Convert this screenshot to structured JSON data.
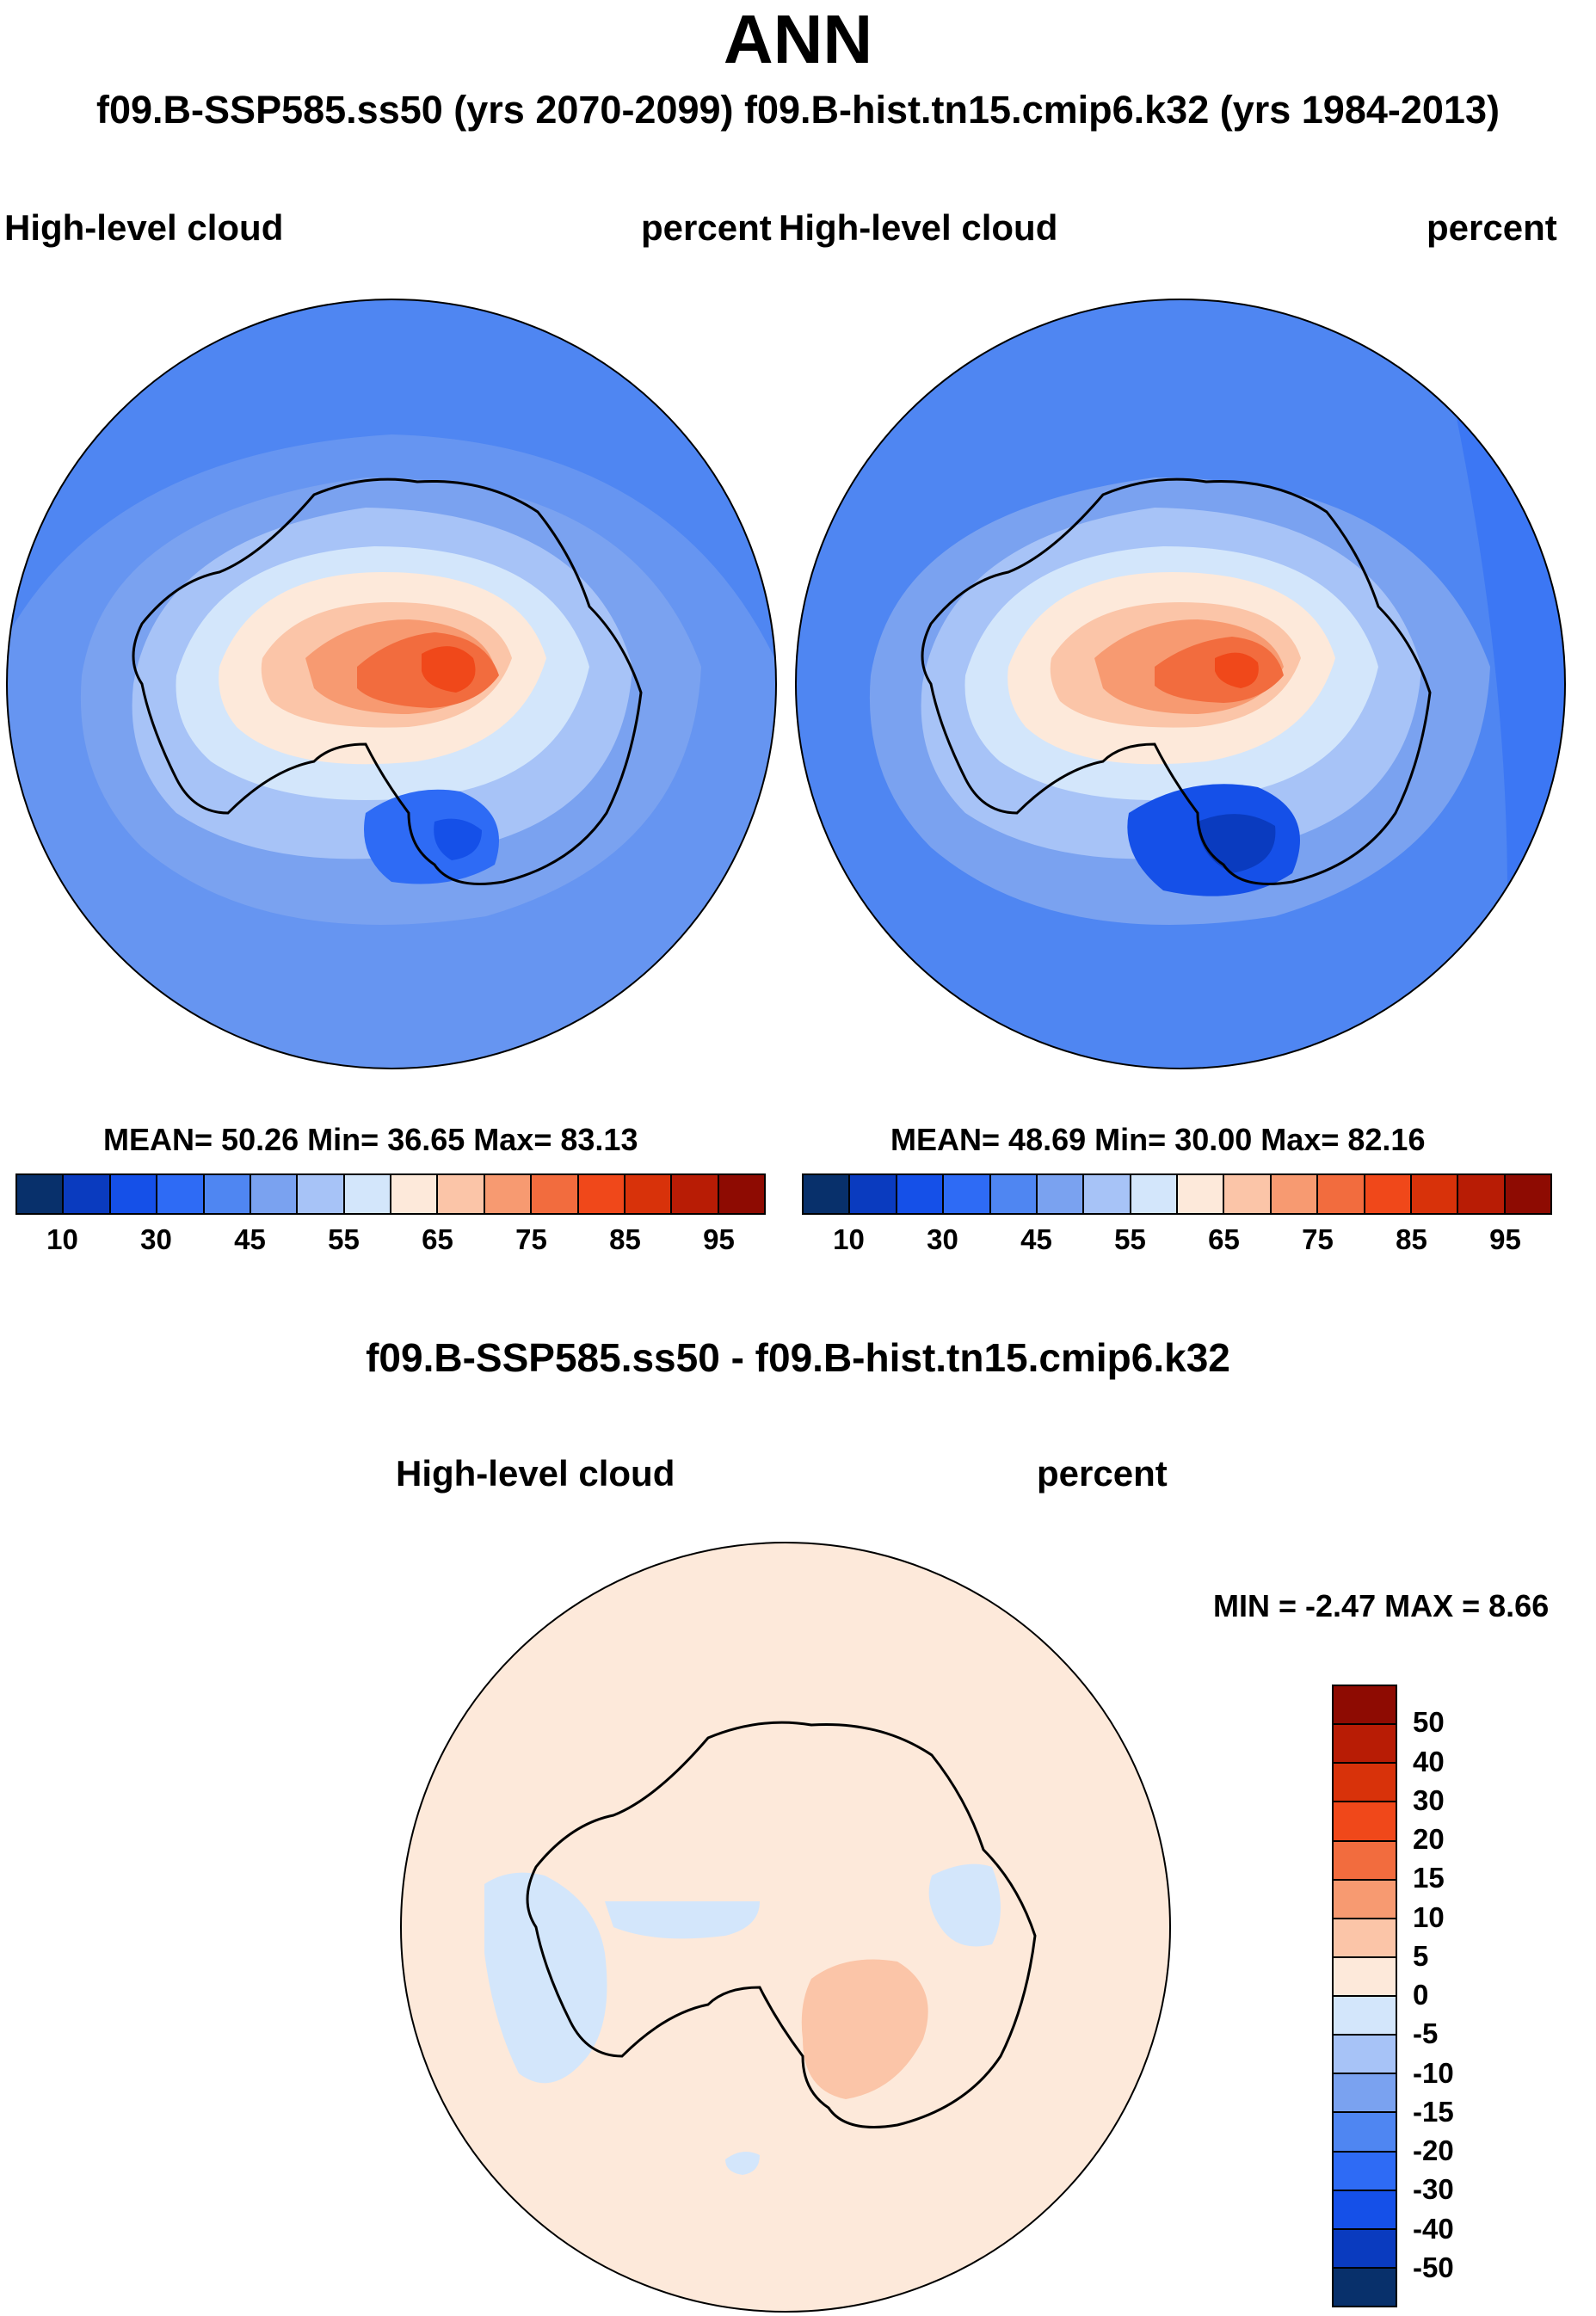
{
  "header": {
    "title": "ANN",
    "subtitle": "f09.B-SSP585.ss50 (yrs 2070-2099)  f09.B-hist.tn15.cmip6.k32 (yrs 1984-2013)"
  },
  "panels": {
    "left": {
      "variable": "High-level cloud",
      "units": "percent",
      "stats": {
        "mean_label": "MEAN=",
        "mean": "50.26",
        "min_label": "Min=",
        "min": "36.65",
        "max_label": "Max=",
        "max": "83.13"
      }
    },
    "right": {
      "variable": "High-level cloud",
      "units": "percent",
      "stats": {
        "mean_label": "MEAN=",
        "mean": "48.69",
        "min_label": "Min=",
        "min": "30.00",
        "max_label": "Max=",
        "max": "82.16"
      }
    },
    "diff": {
      "title": "f09.B-SSP585.ss50 - f09.B-hist.tn15.cmip6.k32",
      "variable": "High-level cloud",
      "units": "percent",
      "stats": {
        "min_label": "MIN =",
        "min": "-2.47",
        "max_label": "MAX =",
        "max": "8.66"
      }
    }
  },
  "chart_data": [
    {
      "type": "heatmap",
      "projection": "south-polar-stereographic",
      "title": "High-level cloud",
      "case": "f09.B-SSP585.ss50 (yrs 2070-2099)",
      "units": "percent",
      "mean": 50.26,
      "min": 36.65,
      "max": 83.13,
      "colorbar": {
        "levels": [
          10,
          20,
          30,
          40,
          45,
          50,
          55,
          60,
          65,
          70,
          75,
          80,
          85,
          90,
          95
        ],
        "tick_labels": [
          "10",
          "30",
          "45",
          "55",
          "65",
          "75",
          "85",
          "95"
        ],
        "colors": [
          "#08306b",
          "#0a3bbf",
          "#1550e8",
          "#2e6bf5",
          "#4f86f2",
          "#7aa2f0",
          "#a7c3f7",
          "#d3e6fb",
          "#fde9da",
          "#fbc5a8",
          "#f79a71",
          "#f26c3e",
          "#f0481a",
          "#d8320a",
          "#b81c05",
          "#8e0b02"
        ]
      }
    },
    {
      "type": "heatmap",
      "projection": "south-polar-stereographic",
      "title": "High-level cloud",
      "case": "f09.B-hist.tn15.cmip6.k32 (yrs 1984-2013)",
      "units": "percent",
      "mean": 48.69,
      "min": 30.0,
      "max": 82.16,
      "colorbar": {
        "levels": [
          10,
          20,
          30,
          40,
          45,
          50,
          55,
          60,
          65,
          70,
          75,
          80,
          85,
          90,
          95
        ],
        "tick_labels": [
          "10",
          "30",
          "45",
          "55",
          "65",
          "75",
          "85",
          "95"
        ],
        "colors": [
          "#08306b",
          "#0a3bbf",
          "#1550e8",
          "#2e6bf5",
          "#4f86f2",
          "#7aa2f0",
          "#a7c3f7",
          "#d3e6fb",
          "#fde9da",
          "#fbc5a8",
          "#f79a71",
          "#f26c3e",
          "#f0481a",
          "#d8320a",
          "#b81c05",
          "#8e0b02"
        ]
      }
    },
    {
      "type": "heatmap",
      "projection": "south-polar-stereographic",
      "title": "f09.B-SSP585.ss50 - f09.B-hist.tn15.cmip6.k32",
      "units": "percent",
      "min": -2.47,
      "max": 8.66,
      "colorbar": {
        "orientation": "vertical",
        "tick_labels": [
          "50",
          "40",
          "30",
          "20",
          "15",
          "10",
          "5",
          "0",
          "-5",
          "-10",
          "-15",
          "-20",
          "-30",
          "-40",
          "-50"
        ],
        "colors": [
          "#8e0b02",
          "#b81c05",
          "#d8320a",
          "#f0481a",
          "#f26c3e",
          "#f79a71",
          "#fbc5a8",
          "#fde9da",
          "#d3e6fb",
          "#a7c3f7",
          "#7aa2f0",
          "#4f86f2",
          "#2e6bf5",
          "#1550e8",
          "#0a3bbf",
          "#08306b"
        ]
      }
    }
  ]
}
